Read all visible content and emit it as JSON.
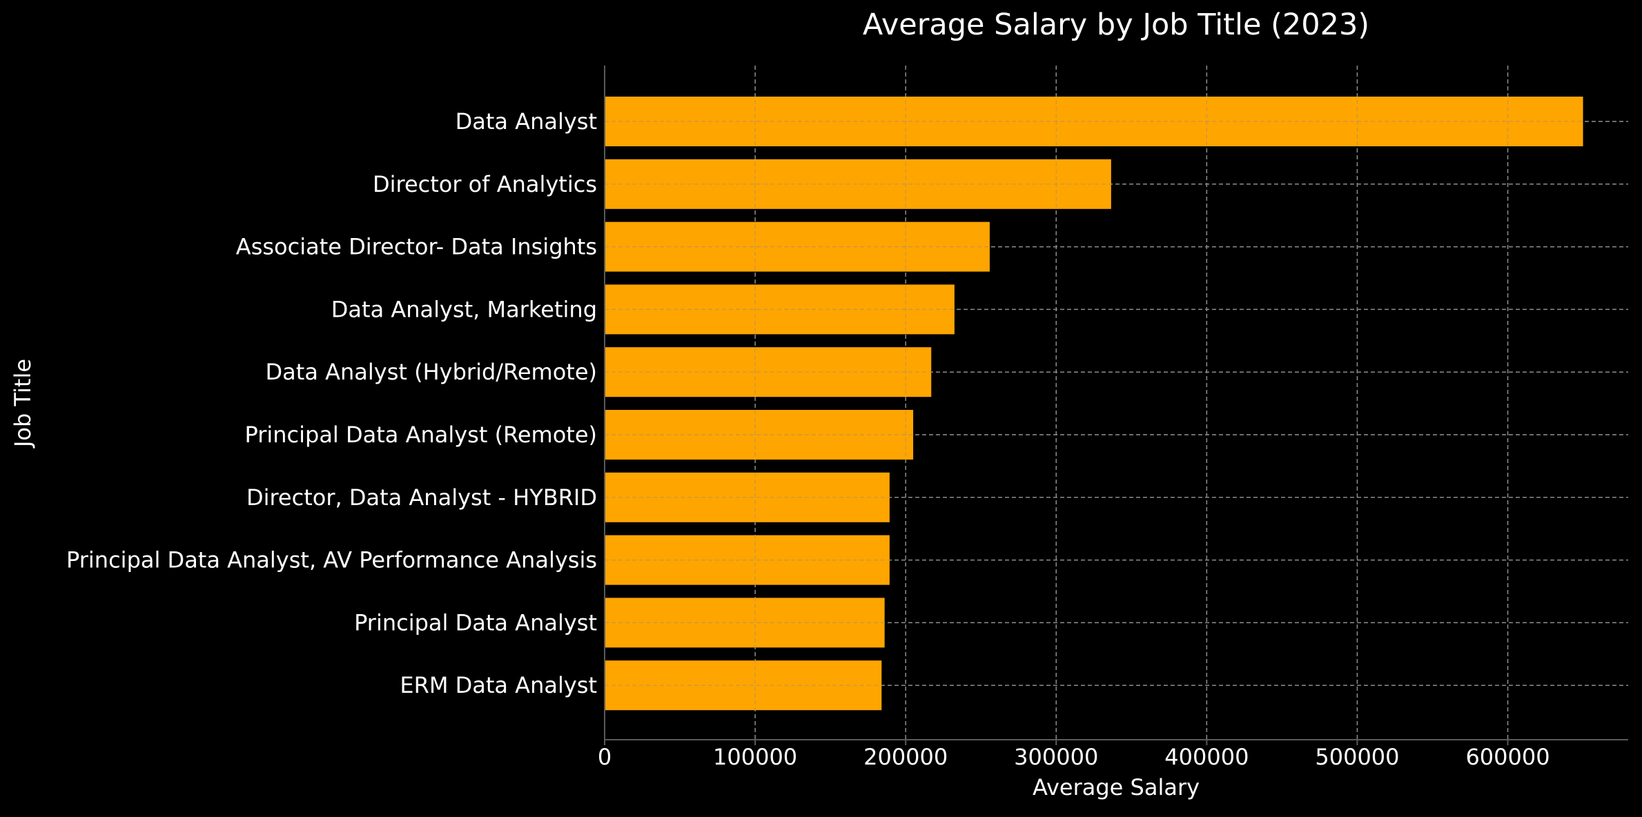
{
  "chart_data": {
    "type": "bar",
    "orientation": "horizontal",
    "title": "Average Salary by Job Title (2023)",
    "xlabel": "Average Salary",
    "ylabel": "Job Title",
    "categories": [
      "Data Analyst",
      "Director of Analytics",
      "Associate Director- Data Insights",
      "Data Analyst, Marketing",
      "Data Analyst (Hybrid/Remote)",
      "Principal Data Analyst (Remote)",
      "Director, Data Analyst - HYBRID",
      "Principal Data Analyst, AV Performance Analysis",
      "Principal Data Analyst",
      "ERM Data Analyst"
    ],
    "values": [
      650000,
      336500,
      255830,
      232423,
      217000,
      205000,
      189309,
      189309,
      186000,
      184000
    ],
    "xlim": [
      0,
      680000
    ],
    "xticks": [
      "0",
      "100000",
      "200000",
      "300000",
      "400000",
      "500000",
      "600000"
    ],
    "grid": true,
    "colors": {
      "background": "#000000",
      "bar": "#ffa500",
      "text": "#ffffff",
      "grid": "#8c8c8c",
      "axis": "#5a5a5a"
    }
  }
}
